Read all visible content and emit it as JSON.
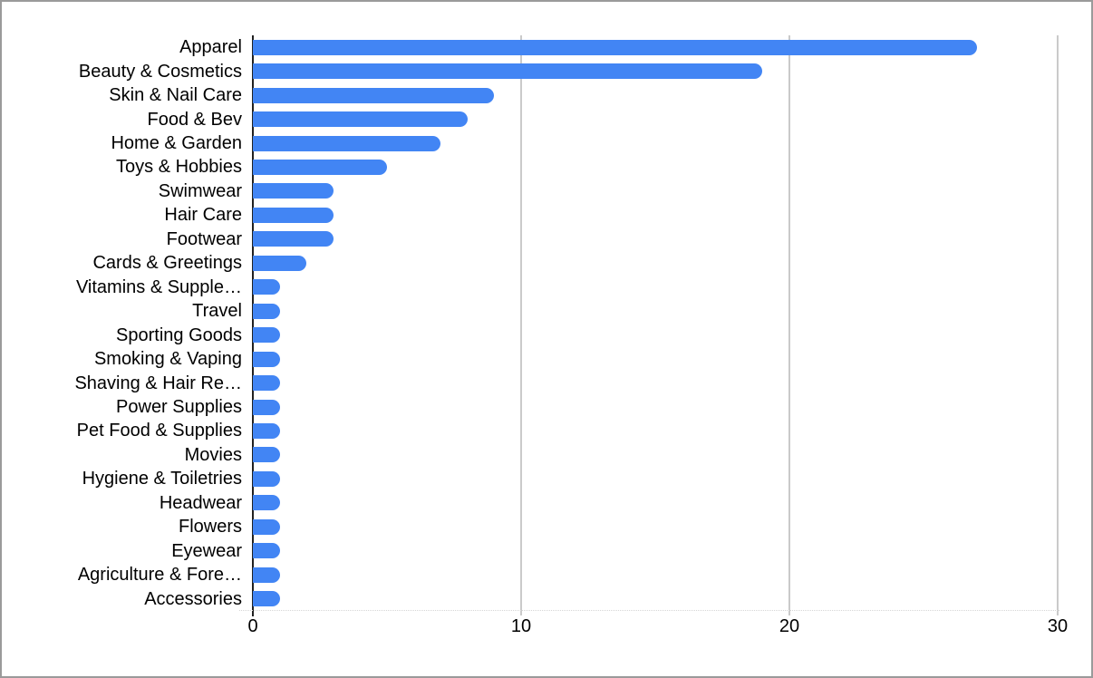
{
  "chart_data": {
    "type": "bar",
    "orientation": "horizontal",
    "title": "",
    "xlabel": "",
    "ylabel": "",
    "legend": "none",
    "grid": "vertical",
    "xlim": [
      0,
      30
    ],
    "x_ticks": [
      0,
      10,
      20,
      30
    ],
    "categories": [
      "Apparel",
      "Beauty & Cosmetics",
      "Skin & Nail Care",
      "Food & Bev",
      "Home & Garden",
      "Toys & Hobbies",
      "Swimwear",
      "Hair Care",
      "Footwear",
      "Cards & Greetings",
      "Vitamins & Supple…",
      "Travel",
      "Sporting Goods",
      "Smoking & Vaping",
      "Shaving & Hair Re…",
      "Power Supplies",
      "Pet Food & Supplies",
      "Movies",
      "Hygiene & Toiletries",
      "Headwear",
      "Flowers",
      "Eyewear",
      "Agriculture & Fore…",
      "Accessories"
    ],
    "values": [
      27,
      19,
      9,
      8,
      7,
      5,
      3,
      3,
      3,
      2,
      1,
      1,
      1,
      1,
      1,
      1,
      1,
      1,
      1,
      1,
      1,
      1,
      1,
      1
    ]
  },
  "colors": {
    "bar": "#4285f4",
    "gridline": "#cacaca",
    "axis": "#212121",
    "text": "#000000",
    "frame_border": "#9a9a9a",
    "background": "#ffffff"
  }
}
